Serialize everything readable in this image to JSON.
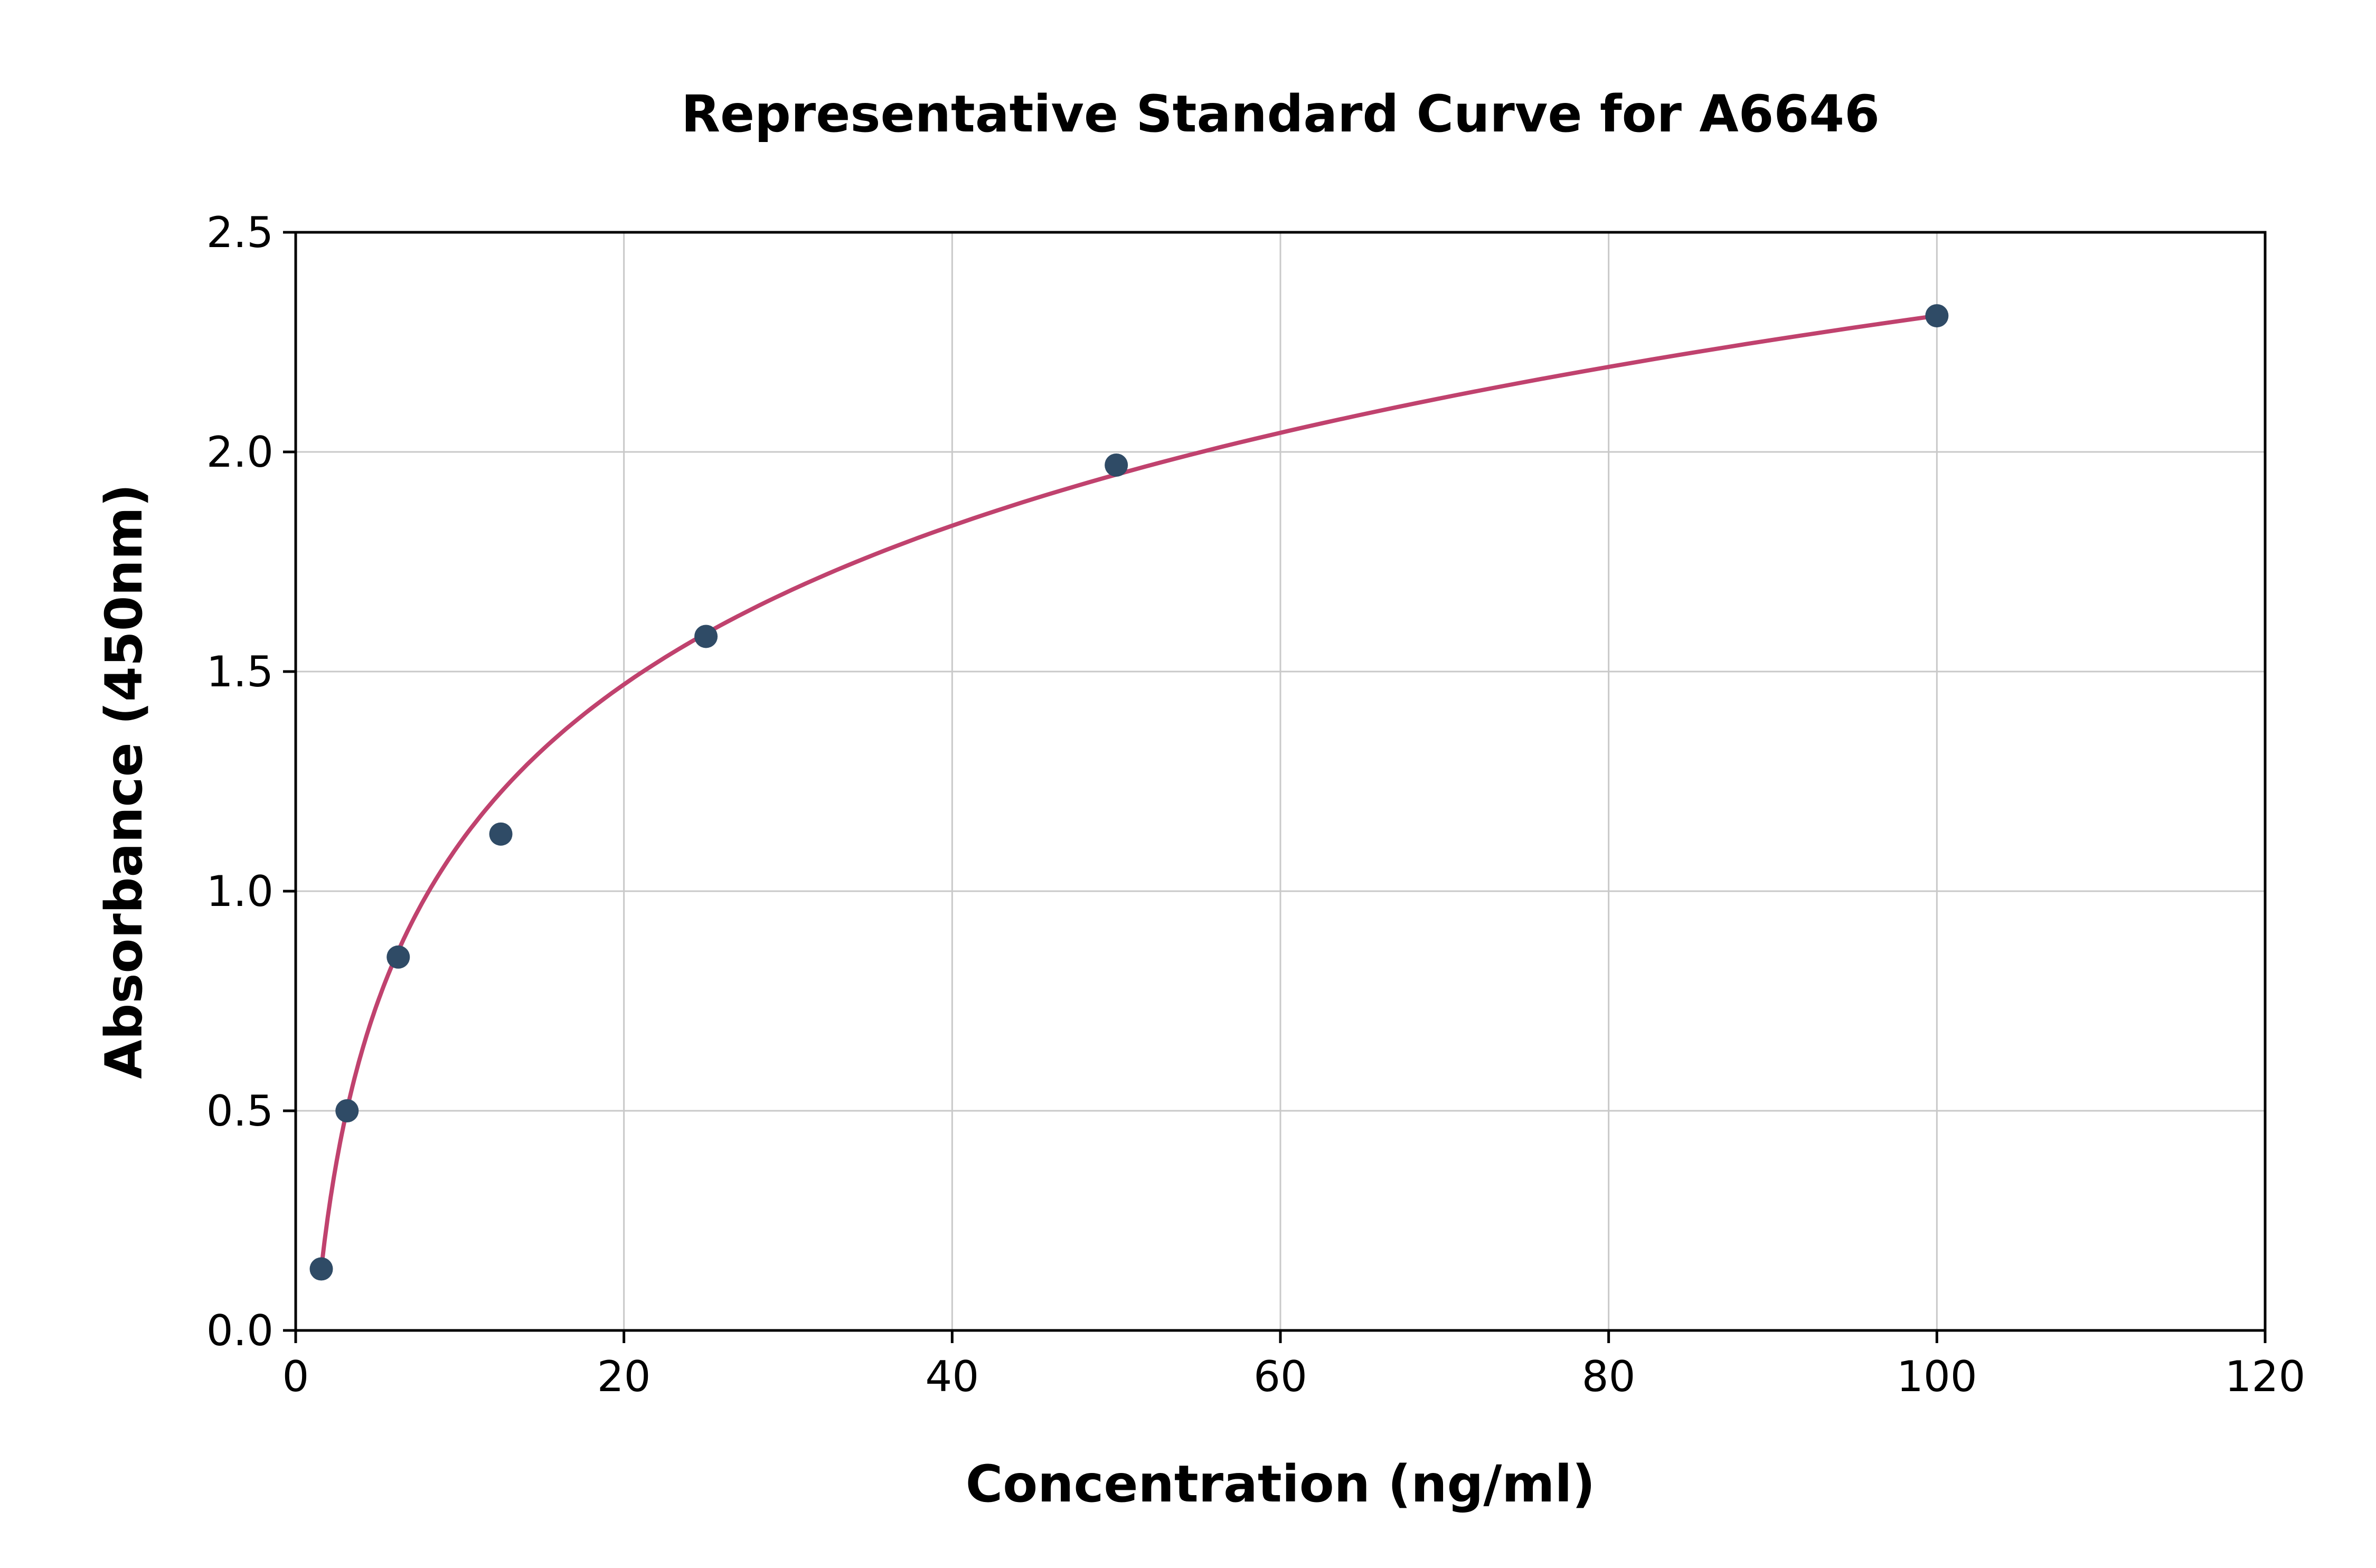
{
  "chart_data": {
    "type": "scatter",
    "title": "Representative Standard Curve for A6646",
    "xlabel": "Concentration (ng/ml)",
    "ylabel": "Absorbance (450nm)",
    "x": [
      1.56,
      3.13,
      6.25,
      12.5,
      25,
      50,
      100
    ],
    "y": [
      0.14,
      0.5,
      0.85,
      1.13,
      1.58,
      1.97,
      2.31
    ],
    "fit": "logarithmic",
    "xlim": [
      0,
      120
    ],
    "ylim": [
      0,
      2.5
    ],
    "xticks": [
      0,
      20,
      40,
      60,
      80,
      100,
      120
    ],
    "yticks": [
      0.0,
      0.5,
      1.0,
      1.5,
      2.0,
      2.5
    ],
    "grid": true,
    "legend": "none",
    "colors": {
      "points": "#2f4b66",
      "curve": "#c0426e",
      "grid": "#c9c9c9",
      "frame": "#000000",
      "background": "#ffffff"
    }
  }
}
